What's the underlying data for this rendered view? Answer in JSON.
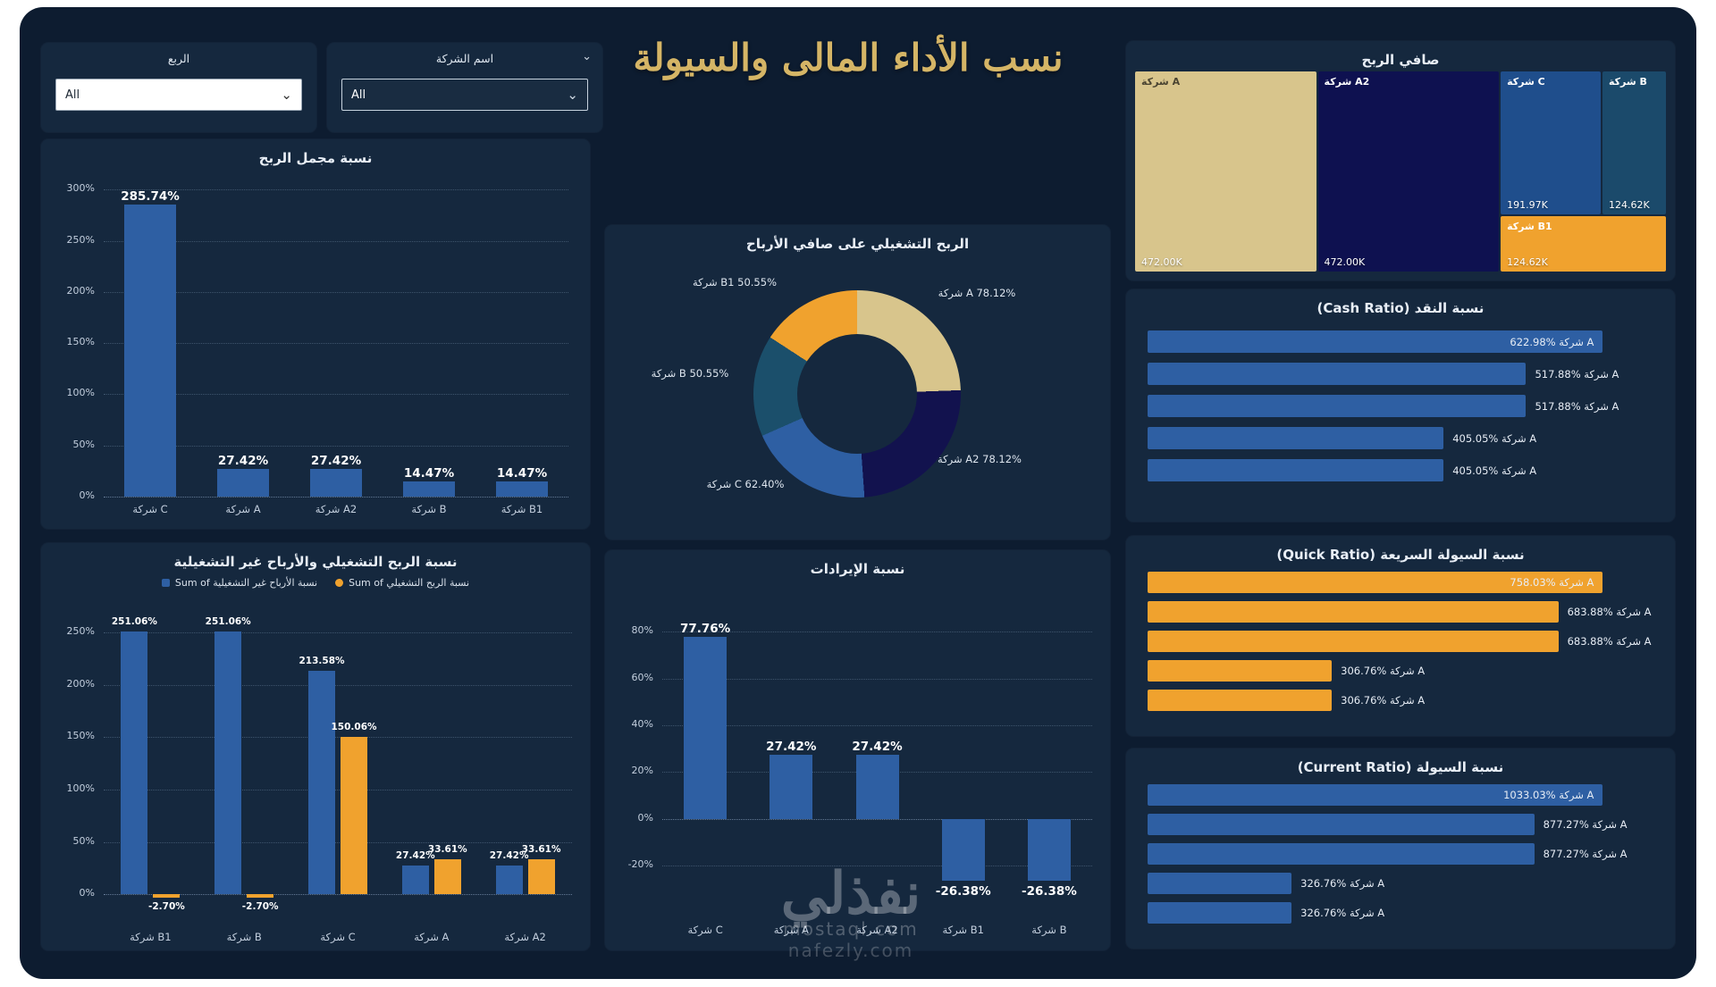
{
  "title": "نسب الأداء المالى والسيولة",
  "filters": {
    "quarter": {
      "label": "الربع",
      "value": "All"
    },
    "company": {
      "label": "اسم الشركة",
      "value": "All"
    }
  },
  "colors": {
    "page_background": "#ffffff",
    "dashboard_background": "#0d1c30",
    "card_background": "#15283e",
    "blue": "#2e5fa3",
    "orange": "#f0a22e",
    "tan": "#d8c58c",
    "navy": "#12124e",
    "teal": "#1b4f6b",
    "title_gold": "#d5b566"
  },
  "chart_data": [
    {
      "type": "treemap",
      "title": "صافي الربح",
      "items": [
        {
          "label": "شركة A",
          "value": "472.00K",
          "color": "#d8c58c",
          "text": "dark"
        },
        {
          "label": "شركة A2",
          "value": "472.00K",
          "color": "#0e1150"
        },
        {
          "label": "شركة C",
          "value": "191.97K",
          "color": "#1f4e8c"
        },
        {
          "label": "شركة B",
          "value": "124.62K",
          "color": "#1b4a6b"
        },
        {
          "label": "شركة B1",
          "value": "124.62K",
          "color": "#f0a22e"
        }
      ]
    },
    {
      "type": "bar",
      "title": "نسبة مجمل الربح",
      "categories": [
        "شركة C",
        "شركة A",
        "شركة A2",
        "شركة B",
        "شركة B1"
      ],
      "series": [
        {
          "color": "#2e5fa3",
          "values": [
            285.74,
            27.42,
            27.42,
            14.47,
            14.47
          ],
          "labels": [
            "285.74%",
            "27.42%",
            "27.42%",
            "14.47%",
            "14.47%"
          ]
        }
      ],
      "ylim": [
        0,
        310
      ],
      "yticks": [
        0,
        50,
        100,
        150,
        200,
        250,
        300
      ]
    },
    {
      "type": "donut",
      "title": "الربح التشغيلي على صافي الأرباح",
      "slices": [
        {
          "name": "شركة A",
          "value": 78.12,
          "label": "شركة A 78.12%",
          "color": "#d8c58c"
        },
        {
          "name": "شركة A2",
          "value": 78.12,
          "label": "شركة A2 78.12%",
          "color": "#12124e"
        },
        {
          "name": "شركة C",
          "value": 62.4,
          "label": "شركة C 62.40%",
          "color": "#2e5fa3"
        },
        {
          "name": "شركة B",
          "value": 50.55,
          "label": "شركة B 50.55%",
          "color": "#1b4f6b"
        },
        {
          "name": "شركة B1",
          "value": 50.55,
          "label": "شركة B1 50.55%",
          "color": "#f0a22e"
        }
      ]
    },
    {
      "type": "bar",
      "title": "نسبة الربح التشغيلي والأرباح غير التشغيلية",
      "categories": [
        "شركة B1",
        "شركة B",
        "شركة C",
        "شركة A",
        "شركة A2"
      ],
      "series": [
        {
          "name": "Sum of نسبة الأرباح غير التشغيلية",
          "color": "#2e5fa3",
          "values": [
            251.06,
            251.06,
            213.58,
            27.42,
            27.42
          ],
          "labels": [
            "251.06%",
            "251.06%",
            "213.58%",
            "27.42%",
            "27.42%"
          ]
        },
        {
          "name": "Sum of نسبة الربح التشغيلي",
          "color": "#f0a22e",
          "values": [
            -2.7,
            -2.7,
            150.06,
            33.61,
            33.61
          ],
          "labels": [
            "-2.70%",
            "-2.70%",
            "150.06%",
            "33.61%",
            "33.61%"
          ]
        }
      ],
      "ylim": [
        -32,
        272
      ],
      "yticks": [
        0,
        50,
        100,
        150,
        200,
        250
      ],
      "legend_position": "top"
    },
    {
      "type": "bar",
      "title": "نسبة الإيرادات",
      "categories": [
        "شركة C",
        "شركة A",
        "شركة A2",
        "شركة B1",
        "شركة B"
      ],
      "series": [
        {
          "color": "#2e5fa3",
          "values": [
            77.76,
            27.42,
            27.42,
            -26.38,
            -26.38
          ],
          "labels": [
            "77.76%",
            "27.42%",
            "27.42%",
            "-26.38%",
            "-26.38%"
          ]
        }
      ],
      "ylim": [
        -38,
        92
      ],
      "yticks": [
        -20,
        0,
        20,
        40,
        60,
        80
      ]
    },
    {
      "type": "hbar",
      "title": "نسبة النقد (Cash Ratio)",
      "color": "#2e5fa3",
      "bars": [
        {
          "value": 622.98,
          "label": "622.98% شركة A"
        },
        {
          "value": 517.88,
          "label": "517.88% شركة A"
        },
        {
          "value": 517.88,
          "label": "517.88% شركة A"
        },
        {
          "value": 405.05,
          "label": "405.05% شركة A"
        },
        {
          "value": 405.05,
          "label": "405.05% شركة A"
        }
      ]
    },
    {
      "type": "hbar",
      "title": "نسبة السيولة السريعة (Quick Ratio)",
      "color": "#f0a22e",
      "bars": [
        {
          "value": 758.03,
          "label": "758.03% شركة A"
        },
        {
          "value": 683.88,
          "label": "683.88% شركة A"
        },
        {
          "value": 683.88,
          "label": "683.88% شركة A"
        },
        {
          "value": 306.76,
          "label": "306.76% شركة A"
        },
        {
          "value": 306.76,
          "label": "306.76% شركة A"
        }
      ]
    },
    {
      "type": "hbar",
      "title": "نسبة السيولة (Current Ratio)",
      "color": "#2e5fa3",
      "bars": [
        {
          "value": 1033.03,
          "label": "1033.03% شركة A"
        },
        {
          "value": 877.27,
          "label": "877.27% شركة A"
        },
        {
          "value": 877.27,
          "label": "877.27% شركة A"
        },
        {
          "value": 326.76,
          "label": "326.76% شركة A"
        },
        {
          "value": 326.76,
          "label": "326.76% شركة A"
        }
      ]
    }
  ],
  "watermark": {
    "brand": "نفذلي",
    "site1": "mostaql.com",
    "site2": "nafezly.com"
  }
}
